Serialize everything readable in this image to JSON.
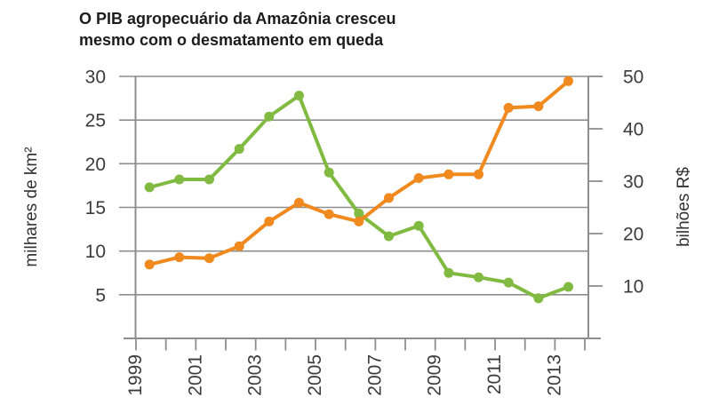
{
  "title": {
    "line1": "O PIB agropecuário da Amazônia cresceu",
    "line2": "mesmo com o desmatamento em queda"
  },
  "chart_data": {
    "type": "line",
    "title": "O PIB agropecuário da Amazônia cresceu mesmo com o desmatamento em queda",
    "x": [
      1999,
      2000,
      2001,
      2002,
      2003,
      2004,
      2005,
      2006,
      2007,
      2008,
      2009,
      2010,
      2011,
      2012,
      2013
    ],
    "x_axis": {
      "tick_years": [
        1999,
        2000,
        2001,
        2002,
        2003,
        2004,
        2005,
        2006,
        2007,
        2008,
        2009,
        2010,
        2011,
        2012,
        2013,
        2014
      ],
      "labeled_ticks": [
        "1999",
        "2001",
        "2003",
        "2005",
        "2007",
        "2009",
        "2011",
        "2013"
      ]
    },
    "left_axis": {
      "label": "milhares de km²",
      "ticks": [
        5,
        10,
        15,
        20,
        25,
        30
      ],
      "range": [
        0,
        30
      ]
    },
    "right_axis": {
      "label": "bilhões R$",
      "ticks": [
        10,
        20,
        30,
        40,
        50
      ],
      "range": [
        0,
        50
      ]
    },
    "grid": "horizontal-only",
    "legend": "none",
    "series": [
      {
        "name": "desmatamento",
        "axis": "left",
        "unit": "milhares de km²",
        "color": "#81ba41",
        "values": [
          17.3,
          18.2,
          18.2,
          21.7,
          25.4,
          27.8,
          19.0,
          14.3,
          11.7,
          12.9,
          7.5,
          7.0,
          6.4,
          4.6,
          5.9
        ]
      },
      {
        "name": "PIB agropecuário",
        "axis": "right",
        "unit": "bilhões R$",
        "color": "#f0891e",
        "values": [
          14.1,
          15.5,
          15.3,
          17.6,
          22.3,
          25.9,
          23.7,
          22.3,
          26.8,
          30.6,
          31.3,
          31.3,
          44.0,
          44.3,
          49.1
        ]
      }
    ],
    "line_color": "#8e8e8e",
    "tick_label_color": "#3b3b3b"
  }
}
